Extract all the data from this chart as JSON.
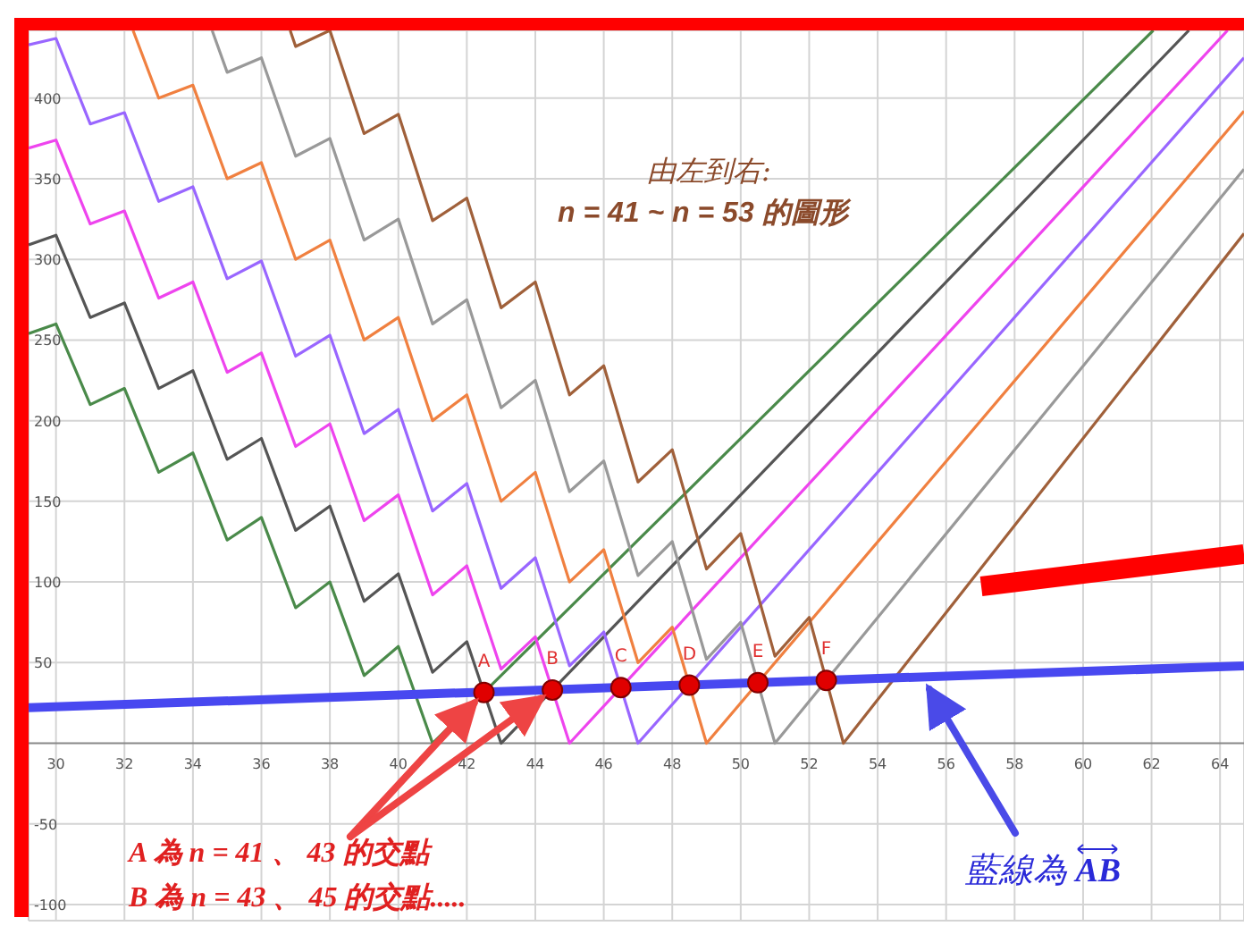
{
  "chart_data": {
    "type": "line",
    "xlim": [
      29.2,
      64.7
    ],
    "ylim": [
      -110,
      442
    ],
    "xticks": [
      30,
      32,
      34,
      36,
      38,
      40,
      42,
      44,
      46,
      48,
      50,
      52,
      54,
      56,
      58,
      60,
      62,
      64
    ],
    "yticks": [
      -100,
      -50,
      50,
      100,
      150,
      200,
      250,
      300,
      350,
      400
    ],
    "grid": true,
    "legend": false,
    "line_style": "solid",
    "series": [
      {
        "color": "#4a8a4a",
        "x": [
          29.2,
          30,
          31,
          32,
          33,
          34,
          35,
          36,
          37,
          38,
          39,
          40,
          41,
          62.05
        ],
        "values": [
          254,
          260,
          210,
          220,
          168,
          180,
          126,
          140,
          84,
          100,
          42,
          60,
          0,
          442
        ]
      },
      {
        "color": "#555555",
        "x": [
          29.2,
          30,
          31,
          32,
          33,
          34,
          35,
          36,
          37,
          38,
          39,
          40,
          41,
          42,
          43,
          63.09
        ],
        "values": [
          309,
          315,
          264,
          273,
          220,
          231,
          176,
          189,
          132,
          147,
          88,
          105,
          44,
          63,
          0,
          442
        ]
      },
      {
        "color": "#ee44ee",
        "x": [
          29.2,
          30,
          31,
          32,
          33,
          34,
          35,
          36,
          37,
          38,
          39,
          40,
          41,
          42,
          43,
          44,
          45,
          64.22
        ],
        "values": [
          369,
          374,
          322,
          330,
          276,
          286,
          230,
          242,
          184,
          198,
          138,
          154,
          92,
          110,
          46,
          66,
          0,
          442
        ]
      },
      {
        "color": "#9966ff",
        "x": [
          29.2,
          30,
          31,
          32,
          33,
          34,
          35,
          36,
          37,
          38,
          39,
          40,
          41,
          42,
          43,
          44,
          45,
          46,
          47,
          64.7
        ],
        "values": [
          433,
          437,
          384,
          391,
          336,
          345,
          288,
          299,
          240,
          253,
          192,
          207,
          144,
          161,
          96,
          115,
          48,
          69,
          0,
          425
        ]
      },
      {
        "color": "#f08040",
        "x": [
          32.25,
          33,
          34,
          35,
          36,
          37,
          38,
          39,
          40,
          41,
          42,
          43,
          44,
          45,
          46,
          47,
          48,
          49,
          64.7
        ],
        "values": [
          442,
          400,
          408,
          350,
          360,
          300,
          312,
          250,
          264,
          200,
          216,
          150,
          168,
          100,
          120,
          50,
          72,
          0,
          392
        ]
      },
      {
        "color": "#999999",
        "x": [
          34.56,
          35,
          36,
          37,
          38,
          39,
          40,
          41,
          42,
          43,
          44,
          45,
          46,
          47,
          48,
          49,
          50,
          51,
          64.7
        ],
        "values": [
          442,
          416,
          425,
          364,
          375,
          312,
          325,
          260,
          275,
          208,
          225,
          156,
          175,
          104,
          125,
          52,
          75,
          0,
          356
        ]
      },
      {
        "color": "#a0603a",
        "x": [
          36.84,
          37,
          38,
          39,
          40,
          41,
          42,
          43,
          44,
          45,
          46,
          47,
          48,
          49,
          50,
          51,
          52,
          53,
          64.7
        ],
        "values": [
          442,
          432,
          442,
          378,
          390,
          324,
          338,
          270,
          286,
          216,
          234,
          162,
          182,
          108,
          130,
          54,
          78,
          0,
          316
        ]
      },
      {
        "color": "#4848f0",
        "x": [
          29.2,
          64.7
        ],
        "values": [
          22,
          48
        ]
      },
      {
        "type": "scatter",
        "color": "#e00000",
        "marker": "circle",
        "x": [
          42.5,
          44.5,
          46.5,
          48.5,
          50.5,
          52.5
        ],
        "values": [
          31.5,
          33,
          34.5,
          36,
          37.5,
          39
        ],
        "value_labels": [
          "A",
          "B",
          "C",
          "D",
          "E",
          "F"
        ]
      }
    ],
    "annotations": [
      "由左到右:",
      "n = 41 ~ n = 53 的圖形",
      {
        "text": "A 為 n = 41 、 43 的交點",
        "x": 42.5,
        "y": 31.5
      },
      "B 為 n = 43 、 45 的交點.....",
      {
        "text": "藍線為 AB",
        "x": 55.3,
        "y": 41
      }
    ]
  }
}
